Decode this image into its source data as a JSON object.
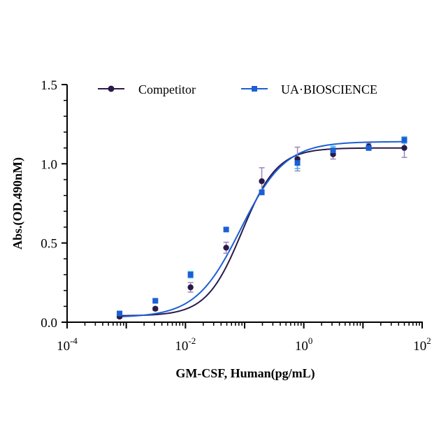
{
  "chart_data": {
    "type": "scatter",
    "title": "",
    "xlabel": "GM-CSF, Human(pg/mL)",
    "ylabel": "Abs.(OD.490nM)",
    "x_scale": "log",
    "xlim": [
      0.0001,
      100
    ],
    "ylim": [
      0,
      1.5
    ],
    "x_ticks": [
      {
        "value": 0.0001,
        "base": "10",
        "exp": "-4"
      },
      {
        "value": 0.01,
        "base": "10",
        "exp": "-2"
      },
      {
        "value": 1,
        "base": "10",
        "exp": "0"
      },
      {
        "value": 100,
        "base": "10",
        "exp": "2"
      }
    ],
    "y_ticks": [
      "0.0",
      "0.5",
      "1.0",
      "1.5"
    ],
    "y_tick_values": [
      0,
      0.5,
      1.0,
      1.5
    ],
    "grid": false,
    "legend_position": "top",
    "series": [
      {
        "name": "Competitor",
        "color": "#2a1a4a",
        "errorbar_color": "#9b86b8",
        "marker": "circle",
        "fit": {
          "bottom": 0.04,
          "top": 1.1,
          "ec50": 0.09,
          "hill": 1.45
        },
        "points": [
          {
            "x": 0.00077,
            "y": 0.035,
            "err": 0.01
          },
          {
            "x": 0.0031,
            "y": 0.085,
            "err": 0.01
          },
          {
            "x": 0.0122,
            "y": 0.22,
            "err": 0.03
          },
          {
            "x": 0.0488,
            "y": 0.47,
            "err": 0.035
          },
          {
            "x": 0.195,
            "y": 0.89,
            "err": 0.085
          },
          {
            "x": 0.781,
            "y": 1.03,
            "err": 0.075
          },
          {
            "x": 3.125,
            "y": 1.06,
            "err": 0.03
          },
          {
            "x": 12.5,
            "y": 1.11,
            "err": 0.02
          },
          {
            "x": 50,
            "y": 1.1,
            "err": 0.06
          }
        ]
      },
      {
        "name": "UA·BIOSCIENCE",
        "color": "#1b5fd6",
        "errorbar_color": "#38b8e6",
        "marker": "square",
        "fit": {
          "bottom": 0.03,
          "top": 1.14,
          "ec50": 0.085,
          "hill": 1.15
        },
        "points": [
          {
            "x": 0.00077,
            "y": 0.055,
            "err": 0.01
          },
          {
            "x": 0.0031,
            "y": 0.135,
            "err": 0.01
          },
          {
            "x": 0.0122,
            "y": 0.3,
            "err": 0.02
          },
          {
            "x": 0.0488,
            "y": 0.585,
            "err": 0.01
          },
          {
            "x": 0.195,
            "y": 0.82,
            "err": 0.015
          },
          {
            "x": 0.781,
            "y": 1.005,
            "err": 0.035
          },
          {
            "x": 3.125,
            "y": 1.085,
            "err": 0.025
          },
          {
            "x": 12.5,
            "y": 1.1,
            "err": 0.015
          },
          {
            "x": 50,
            "y": 1.15,
            "err": 0.02
          }
        ]
      }
    ]
  }
}
